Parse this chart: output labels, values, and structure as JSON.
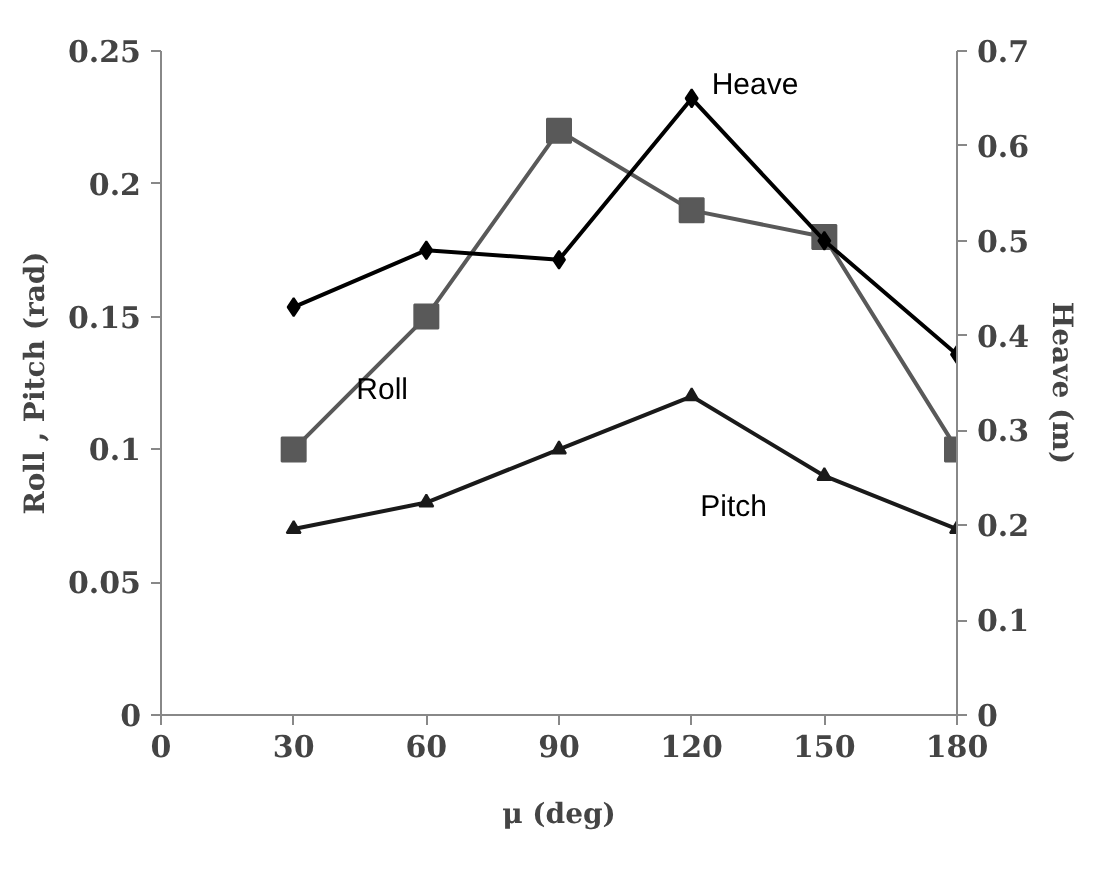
{
  "chart_data": {
    "type": "line",
    "xlabel": "μ (deg)",
    "ylabel": "Roll , Pitch (rad)",
    "y2label": "Heave (m)",
    "x": [
      30,
      60,
      90,
      120,
      150,
      180
    ],
    "xlim": [
      0,
      180
    ],
    "xticks": [
      0,
      30,
      60,
      90,
      120,
      150,
      180
    ],
    "ylim": [
      0,
      0.25
    ],
    "yticks": [
      0,
      0.05,
      0.1,
      0.15,
      0.2,
      0.25
    ],
    "y2lim": [
      0,
      0.7
    ],
    "y2ticks": [
      0,
      0.1,
      0.2,
      0.3,
      0.4,
      0.5,
      0.6,
      0.7
    ],
    "series": [
      {
        "name": "Roll",
        "color": "#595959",
        "marker": "square",
        "values": [
          0.1,
          0.15,
          0.22,
          0.19,
          0.18,
          0.1
        ]
      },
      {
        "name": "Pitch",
        "color": "#1a1a1a",
        "marker": "triangle",
        "values": [
          0.07,
          0.08,
          0.1,
          0.12,
          0.09,
          0.07
        ]
      },
      {
        "name": "Heave",
        "color": "#000000",
        "marker": "diamond",
        "axis": "y2",
        "values": [
          0.43,
          0.49,
          0.48,
          0.65,
          0.5,
          0.38
        ]
      }
    ]
  }
}
